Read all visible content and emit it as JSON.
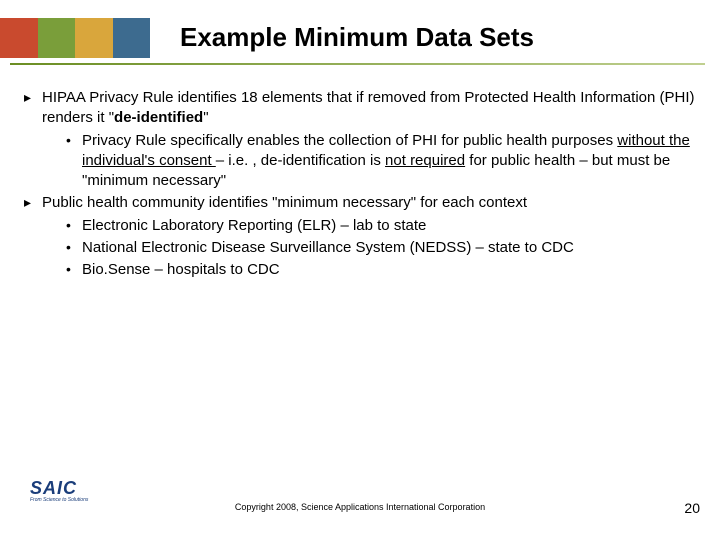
{
  "header": {
    "band_colors": [
      "#c94a2e",
      "#7a9e3a",
      "#d9a63c",
      "#3d6b8f"
    ]
  },
  "title": "Example Minimum Data Sets",
  "bullets": {
    "b1_part1": "HIPAA Privacy Rule identifies 18 elements that if removed from Protected Health Information (PHI) renders it \"",
    "b1_bold": "de-identified",
    "b1_part2": "\"",
    "b1_1_p1": "Privacy Rule specifically enables the collection of PHI for public health purposes ",
    "b1_1_u1": "without the individual's consent ",
    "b1_1_p2": "– i.e. , de-identification is ",
    "b1_1_u2": "not required",
    "b1_1_p3": " for public health – but must be \"minimum necessary\"",
    "b2": "Public health community identifies \"minimum necessary\" for each context",
    "b2_1": "Electronic Laboratory Reporting (ELR) – lab to state",
    "b2_2": "National Electronic Disease Surveillance System (NEDSS) – state to CDC",
    "b2_3": "Bio.Sense – hospitals to CDC"
  },
  "footer": {
    "logo_text": "SAIC",
    "logo_sub": "From Science to Solutions",
    "copyright": "Copyright 2008, Science Applications International Corporation",
    "slide_number": "20"
  },
  "colors": {
    "underline_start": "#6b8e23",
    "text": "#000000",
    "logo": "#1a3d7a"
  }
}
